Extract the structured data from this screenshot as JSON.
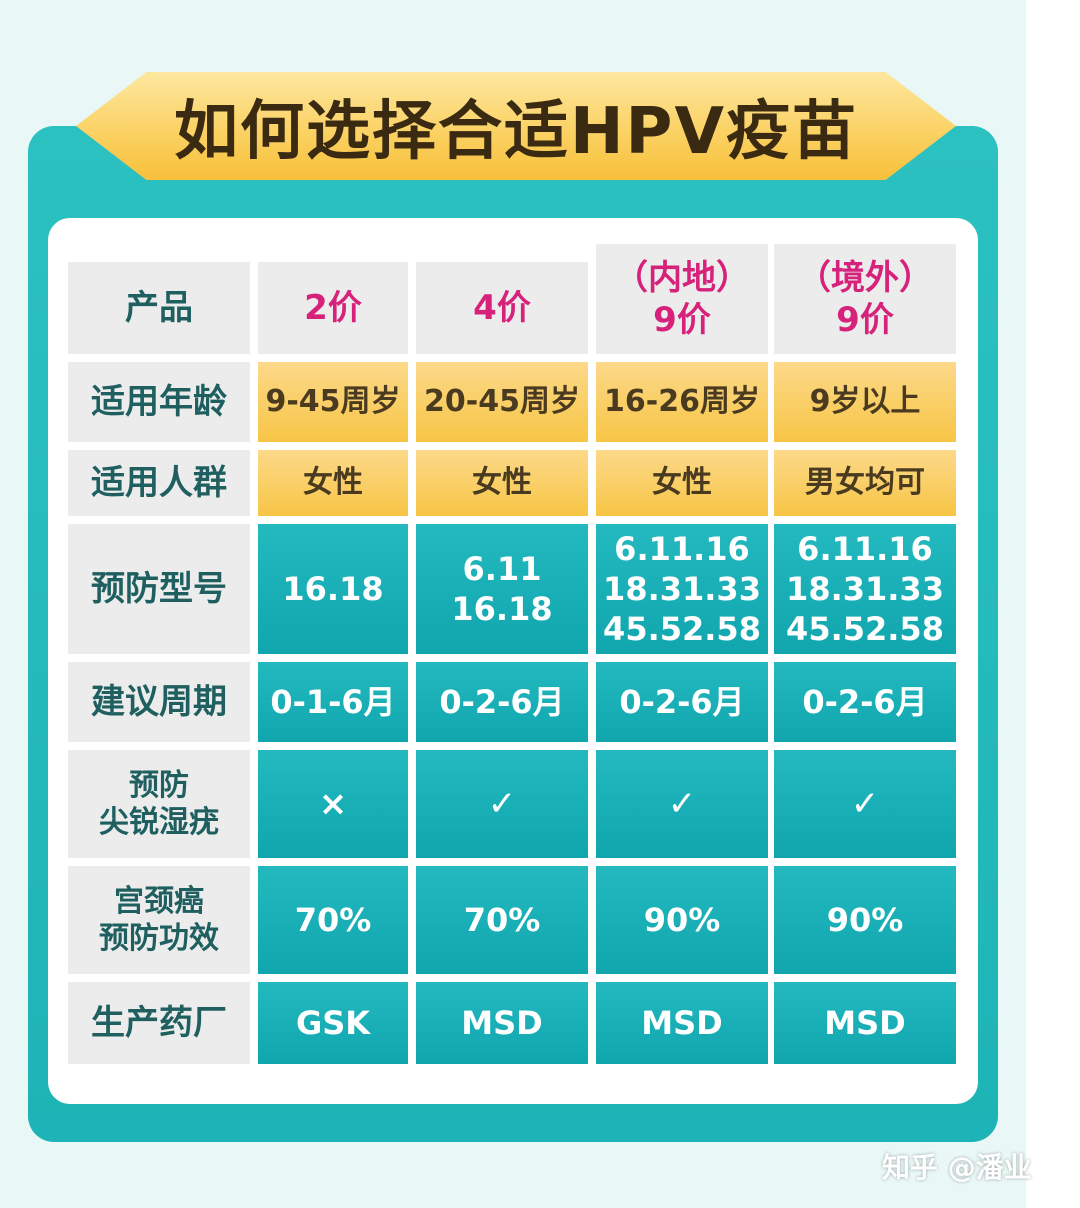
{
  "title": "如何选择合适HPV疫苗",
  "row_labels": [
    "产品",
    "适用年龄",
    "适用人群",
    "预防型号",
    "建议周期",
    "预防\n尖锐湿疣",
    "宫颈癌\n预防功效",
    "生产药厂"
  ],
  "products": [
    "2价",
    "4价",
    "（内地）\n9价",
    "（境外）\n9价"
  ],
  "rows": {
    "age": [
      "9-45周岁",
      "20-45周岁",
      "16-26周岁",
      "9岁以上"
    ],
    "population": [
      "女性",
      "女性",
      "女性",
      "男女均可"
    ],
    "types": [
      "16.18",
      "6.11\n16.18",
      "6.11.16\n18.31.33\n45.52.58",
      "6.11.16\n18.31.33\n45.52.58"
    ],
    "cycle": [
      "0-1-6月",
      "0-2-6月",
      "0-2-6月",
      "0-2-6月"
    ],
    "warts": [
      "×",
      "✓",
      "✓",
      "✓"
    ],
    "efficacy": [
      "70%",
      "70%",
      "90%",
      "90%"
    ],
    "maker": [
      "GSK",
      "MSD",
      "MSD",
      "MSD"
    ]
  },
  "watermark": "知乎 @潘业",
  "colors": {
    "teal": "#1eb3b6",
    "gold": "#f7c545",
    "product_pink": "#d6227a",
    "label_green": "#1f5f60"
  }
}
